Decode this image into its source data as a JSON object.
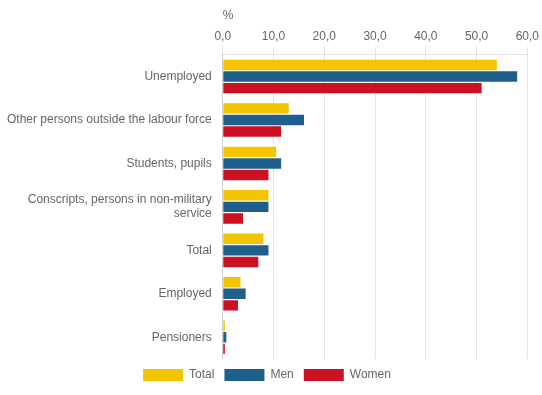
{
  "chart_data": {
    "type": "bar",
    "orientation": "horizontal",
    "xlabel": "%",
    "categories": [
      "Unemployed",
      "Other persons outside the labour force",
      "Students, pupils",
      "Conscripts, persons in non-military\nservice",
      "Total",
      "Employed",
      "Pensioners"
    ],
    "series": [
      {
        "name": "Total",
        "color": "#F5C400",
        "values": [
          54.0,
          13.0,
          10.5,
          9.0,
          8.0,
          3.5,
          0.4
        ]
      },
      {
        "name": "Men",
        "color": "#1F5F8B",
        "values": [
          58.0,
          16.0,
          11.5,
          9.0,
          9.0,
          4.5,
          0.7
        ]
      },
      {
        "name": "Women",
        "color": "#CC1122",
        "values": [
          51.0,
          11.5,
          9.0,
          4.0,
          7.0,
          3.0,
          0.4
        ]
      }
    ],
    "xlim": [
      0,
      60
    ],
    "xticks": [
      {
        "value": 0,
        "label": "0,0"
      },
      {
        "value": 10,
        "label": "10,0"
      },
      {
        "value": 20,
        "label": "20,0"
      },
      {
        "value": 30,
        "label": "30,0"
      },
      {
        "value": 40,
        "label": "40,0"
      },
      {
        "value": 50,
        "label": "50,0"
      },
      {
        "value": 60,
        "label": "60,0"
      }
    ],
    "grid": true,
    "legend": "bottom"
  }
}
